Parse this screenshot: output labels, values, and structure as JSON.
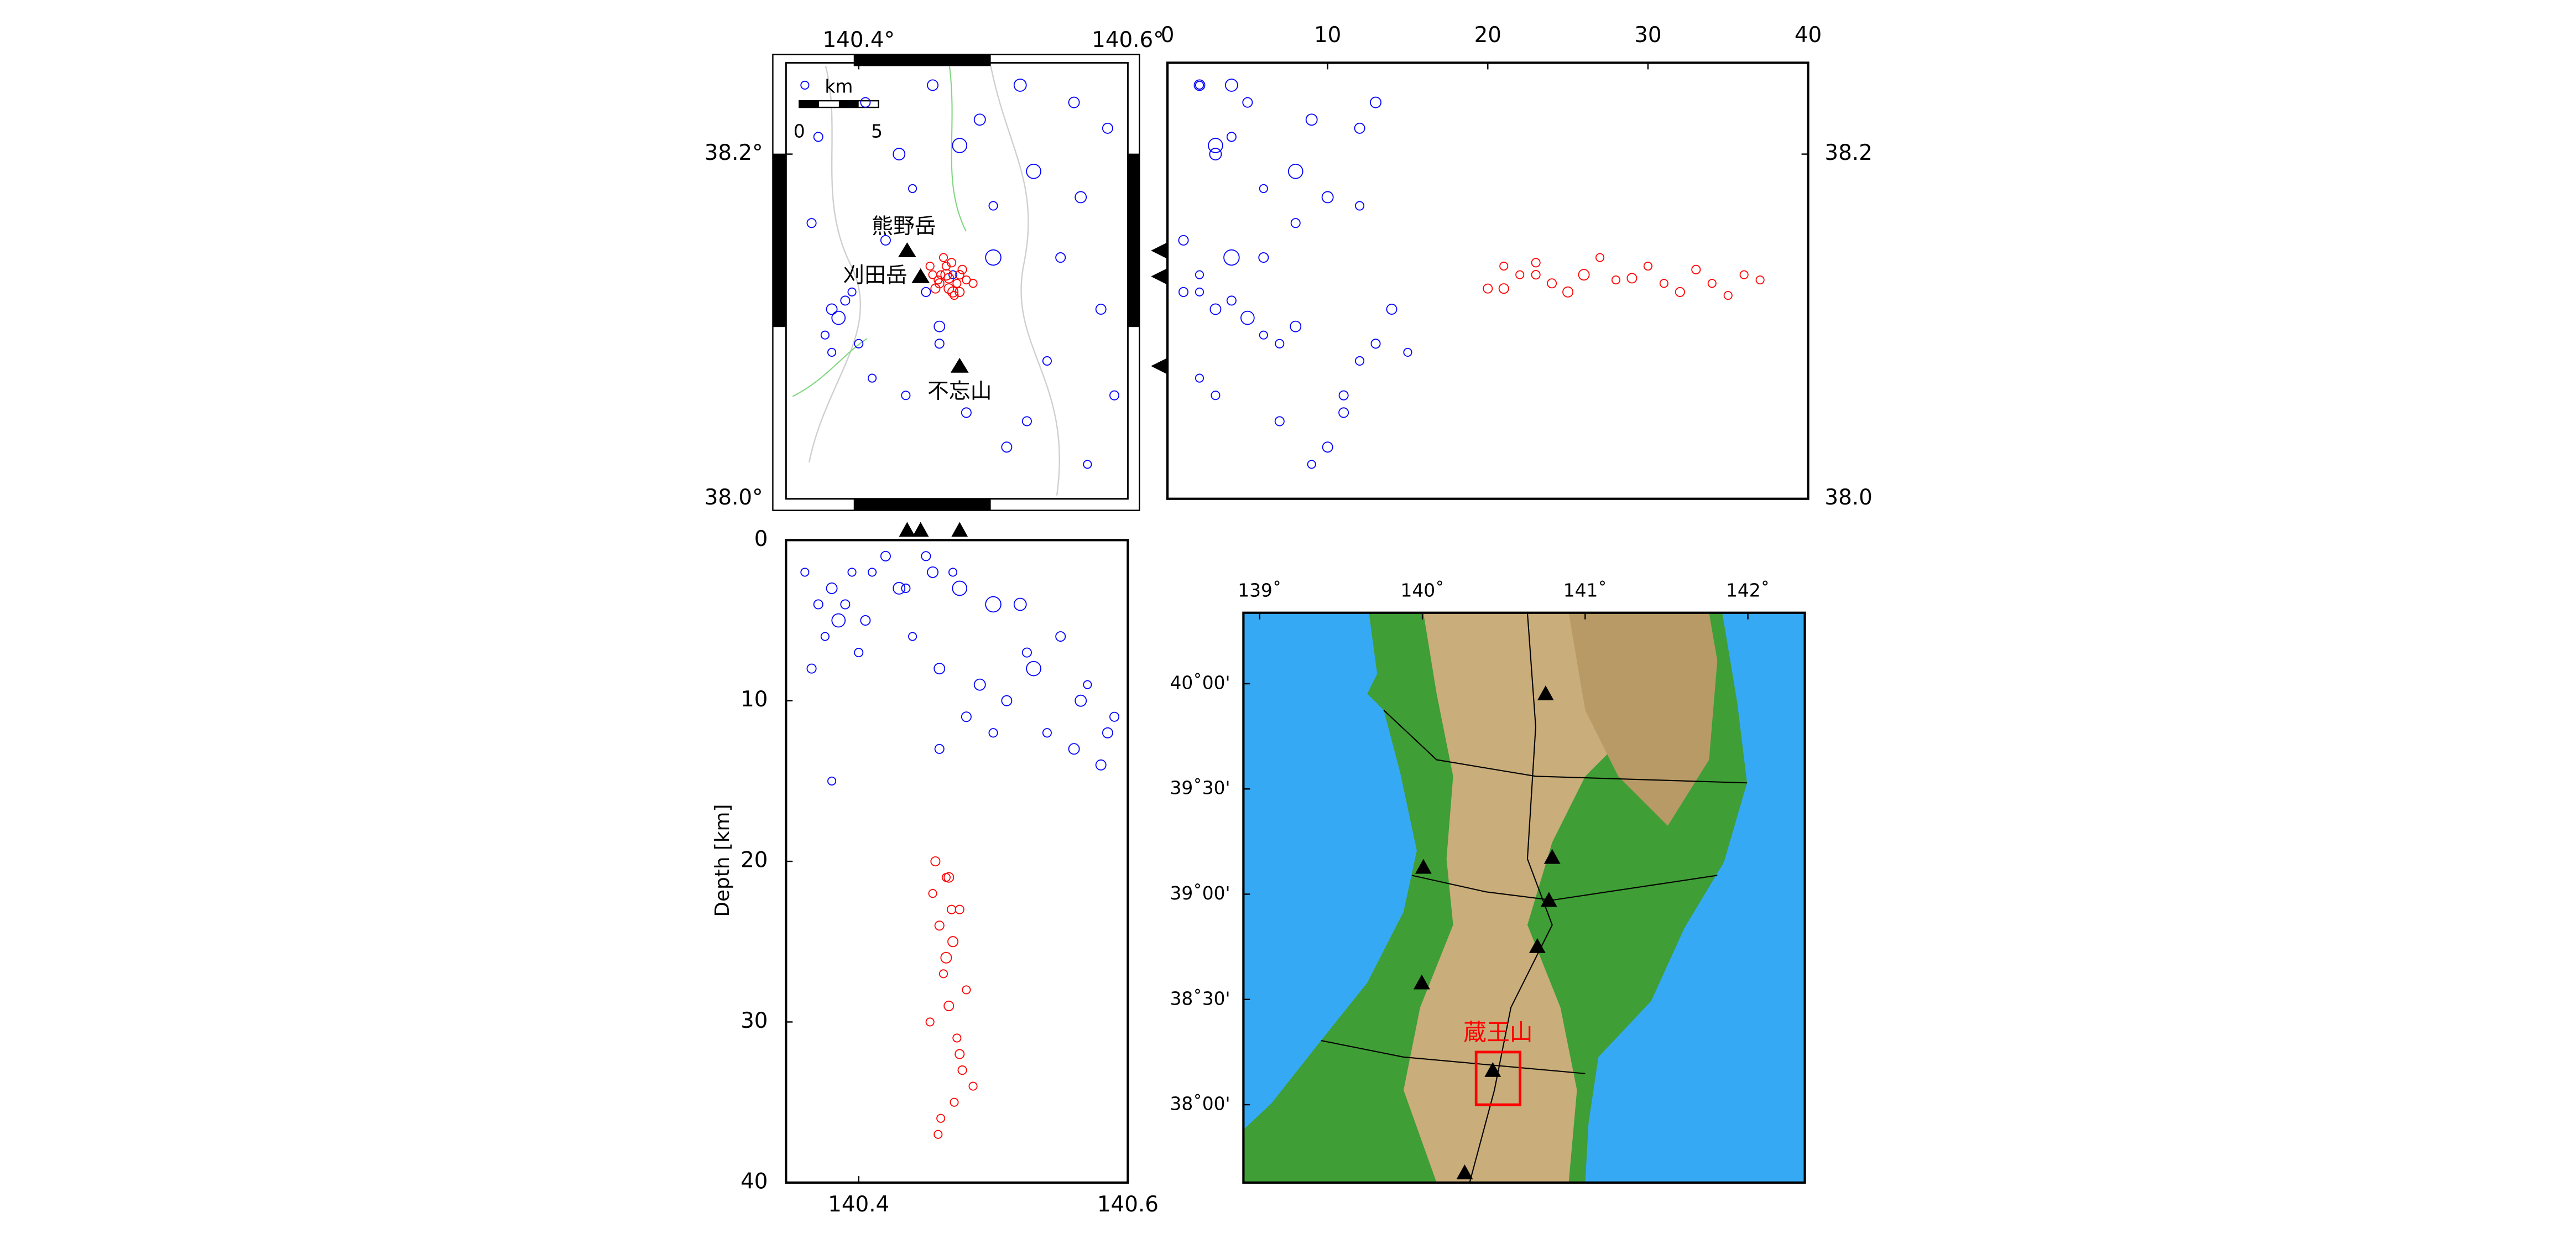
{
  "map": {
    "xlim": [
      140.346,
      140.6
    ],
    "ylim": [
      38.0,
      38.253
    ],
    "xticks": [
      {
        "value": 140.4,
        "label": "140.4°"
      },
      {
        "value": 140.6,
        "label": "140.6°"
      }
    ],
    "yticks": [
      {
        "value": 38.2,
        "label": "38.2°"
      },
      {
        "value": 38.0,
        "label": "38.0°"
      }
    ],
    "scale_bar": {
      "unit": "km",
      "ticks": [
        0,
        5
      ]
    }
  },
  "lat_depth": {
    "xlim": [
      0,
      40
    ],
    "xticks": [
      0,
      10,
      20,
      30,
      40
    ],
    "ylim": [
      38.0,
      38.253
    ],
    "yticks": [
      38.2,
      {
        "value": 38,
        "label": "38.0"
      }
    ]
  },
  "lon_depth": {
    "xlim": [
      140.346,
      140.6
    ],
    "xticks": [
      140.4,
      140.6
    ],
    "ylim": [
      40,
      0
    ],
    "yticks": [
      0,
      10,
      20,
      30,
      40
    ],
    "ylabel": "Depth [km]"
  },
  "index_map": {
    "xlim": [
      138.9,
      142.35
    ],
    "ylim": [
      37.63,
      40.337
    ],
    "xticks": [
      {
        "value": 139,
        "label": "139˚"
      },
      {
        "value": 140,
        "label": "140˚"
      },
      {
        "value": 141,
        "label": "141˚"
      },
      {
        "value": 142,
        "label": "142˚"
      }
    ],
    "yticks": [
      {
        "value": 40,
        "label": "40˚00'"
      },
      {
        "value": 39.5,
        "label": "39˚30'"
      },
      {
        "value": 39,
        "label": "39˚00'"
      },
      {
        "value": 38.5,
        "label": "38˚30'"
      },
      {
        "value": 38,
        "label": "38˚00'"
      }
    ],
    "target": {
      "label": "蔵王山",
      "lon": [
        140.33,
        140.6
      ],
      "lat": [
        38.0,
        38.25
      ],
      "color": "#ff0000"
    }
  },
  "volcanoes": [
    {
      "name": "熊野岳",
      "lon": 140.436,
      "lat": 38.144
    },
    {
      "name": "刈田岳",
      "lon": 140.446,
      "lat": 38.129
    },
    {
      "name": "不忘山",
      "lon": 140.475,
      "lat": 38.077
    }
  ],
  "events": {
    "shallow": {
      "color": "#0000ff",
      "points": [
        {
          "lon": 140.36,
          "lat": 38.24,
          "depth": 2,
          "mag": 1
        },
        {
          "lon": 140.37,
          "lat": 38.21,
          "depth": 4,
          "mag": 1.2
        },
        {
          "lon": 140.38,
          "lat": 38.11,
          "depth": 3,
          "mag": 1.5
        },
        {
          "lon": 140.385,
          "lat": 38.105,
          "depth": 5,
          "mag": 2
        },
        {
          "lon": 140.39,
          "lat": 38.115,
          "depth": 4,
          "mag": 1.2
        },
        {
          "lon": 140.375,
          "lat": 38.095,
          "depth": 6,
          "mag": 1
        },
        {
          "lon": 140.4,
          "lat": 38.09,
          "depth": 7,
          "mag": 1.1
        },
        {
          "lon": 140.41,
          "lat": 38.07,
          "depth": 2,
          "mag": 1
        },
        {
          "lon": 140.42,
          "lat": 38.15,
          "depth": 1,
          "mag": 1.3
        },
        {
          "lon": 140.43,
          "lat": 38.2,
          "depth": 3,
          "mag": 1.7
        },
        {
          "lon": 140.44,
          "lat": 38.18,
          "depth": 6,
          "mag": 1
        },
        {
          "lon": 140.45,
          "lat": 38.12,
          "depth": 1,
          "mag": 1.2
        },
        {
          "lon": 140.46,
          "lat": 38.1,
          "depth": 8,
          "mag": 1.5
        },
        {
          "lon": 140.47,
          "lat": 38.13,
          "depth": 2,
          "mag": 1
        },
        {
          "lon": 140.48,
          "lat": 38.05,
          "depth": 11,
          "mag": 1.3
        },
        {
          "lon": 140.49,
          "lat": 38.22,
          "depth": 9,
          "mag": 1.6
        },
        {
          "lon": 140.5,
          "lat": 38.17,
          "depth": 12,
          "mag": 1.1
        },
        {
          "lon": 140.51,
          "lat": 38.03,
          "depth": 10,
          "mag": 1.4
        },
        {
          "lon": 140.52,
          "lat": 38.24,
          "depth": 4,
          "mag": 1.8
        },
        {
          "lon": 140.53,
          "lat": 38.19,
          "depth": 8,
          "mag": 2.2
        },
        {
          "lon": 140.54,
          "lat": 38.08,
          "depth": 12,
          "mag": 1.1
        },
        {
          "lon": 140.55,
          "lat": 38.14,
          "depth": 6,
          "mag": 1.3
        },
        {
          "lon": 140.56,
          "lat": 38.23,
          "depth": 13,
          "mag": 1.5
        },
        {
          "lon": 140.57,
          "lat": 38.02,
          "depth": 9,
          "mag": 1
        },
        {
          "lon": 140.58,
          "lat": 38.11,
          "depth": 14,
          "mag": 1.4
        },
        {
          "lon": 140.59,
          "lat": 38.06,
          "depth": 11,
          "mag": 1.2
        },
        {
          "lon": 140.365,
          "lat": 38.16,
          "depth": 8,
          "mag": 1.2
        },
        {
          "lon": 140.395,
          "lat": 38.12,
          "depth": 2,
          "mag": 1
        },
        {
          "lon": 140.405,
          "lat": 38.23,
          "depth": 5,
          "mag": 1.3
        },
        {
          "lon": 140.435,
          "lat": 38.06,
          "depth": 3,
          "mag": 1.1
        },
        {
          "lon": 140.455,
          "lat": 38.24,
          "depth": 2,
          "mag": 1.5
        },
        {
          "lon": 140.475,
          "lat": 38.205,
          "depth": 3,
          "mag": 2.2
        },
        {
          "lon": 140.525,
          "lat": 38.045,
          "depth": 7,
          "mag": 1.2
        },
        {
          "lon": 140.565,
          "lat": 38.175,
          "depth": 10,
          "mag": 1.6
        },
        {
          "lon": 140.585,
          "lat": 38.215,
          "depth": 12,
          "mag": 1.4
        },
        {
          "lon": 140.38,
          "lat": 38.085,
          "depth": 15,
          "mag": 1
        },
        {
          "lon": 140.46,
          "lat": 38.09,
          "depth": 13,
          "mag": 1.2
        },
        {
          "lon": 140.5,
          "lat": 38.14,
          "depth": 4,
          "mag": 2.4
        }
      ]
    },
    "deep": {
      "color": "#ff0000",
      "points": [
        {
          "lon": 140.455,
          "lat": 38.13,
          "depth": 22,
          "mag": 1
        },
        {
          "lon": 140.46,
          "lat": 38.125,
          "depth": 24,
          "mag": 1.2
        },
        {
          "lon": 140.465,
          "lat": 38.135,
          "depth": 21,
          "mag": 1
        },
        {
          "lon": 140.47,
          "lat": 38.12,
          "depth": 25,
          "mag": 1.4
        },
        {
          "lon": 140.475,
          "lat": 38.13,
          "depth": 23,
          "mag": 1.1
        },
        {
          "lon": 140.463,
          "lat": 38.14,
          "depth": 27,
          "mag": 1
        },
        {
          "lon": 140.467,
          "lat": 38.128,
          "depth": 29,
          "mag": 1.3
        },
        {
          "lon": 140.473,
          "lat": 38.125,
          "depth": 31,
          "mag": 1
        },
        {
          "lon": 140.477,
          "lat": 38.133,
          "depth": 33,
          "mag": 1.1
        },
        {
          "lon": 140.471,
          "lat": 38.118,
          "depth": 35,
          "mag": 1
        },
        {
          "lon": 140.457,
          "lat": 38.122,
          "depth": 20,
          "mag": 1.2
        },
        {
          "lon": 140.48,
          "lat": 38.127,
          "depth": 28,
          "mag": 1
        },
        {
          "lon": 140.465,
          "lat": 38.13,
          "depth": 26,
          "mag": 1.5
        },
        {
          "lon": 140.453,
          "lat": 38.135,
          "depth": 30,
          "mag": 1
        },
        {
          "lon": 140.475,
          "lat": 38.12,
          "depth": 32,
          "mag": 1.2
        },
        {
          "lon": 140.461,
          "lat": 38.13,
          "depth": 36,
          "mag": 1
        },
        {
          "lon": 140.469,
          "lat": 38.137,
          "depth": 23,
          "mag": 1.1
        },
        {
          "lon": 140.485,
          "lat": 38.125,
          "depth": 34,
          "mag": 1
        },
        {
          "lon": 140.459,
          "lat": 38.127,
          "depth": 37,
          "mag": 1
        },
        {
          "lon": 140.467,
          "lat": 38.122,
          "depth": 21,
          "mag": 1.3
        }
      ]
    }
  }
}
